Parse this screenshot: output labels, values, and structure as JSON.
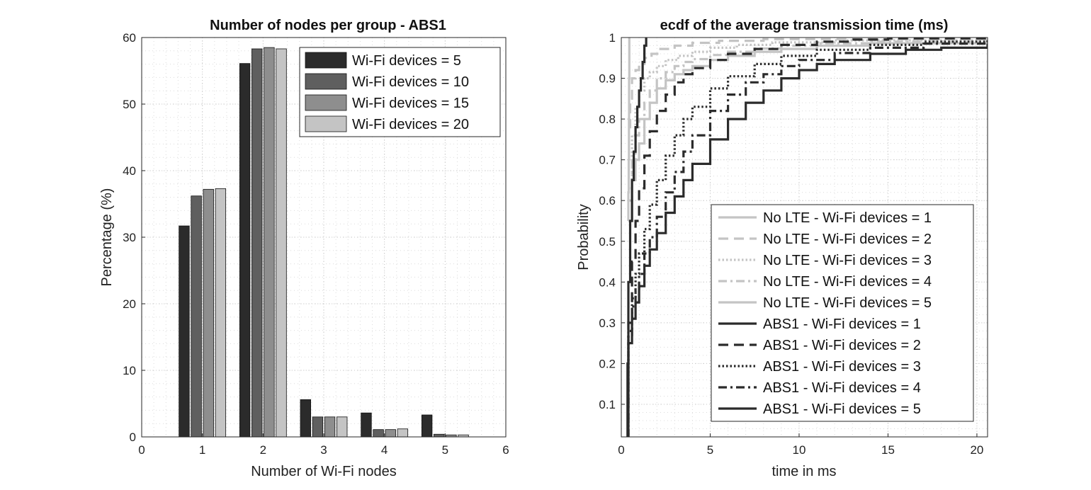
{
  "chart_data": [
    {
      "type": "bar",
      "title": "Number of nodes per group - ABS1",
      "xlabel": "Number of Wi-Fi nodes",
      "ylabel": "Percentage (%)",
      "xlim": [
        0,
        6
      ],
      "ylim": [
        0,
        60
      ],
      "xticks": [
        "0",
        "1",
        "2",
        "3",
        "4",
        "5",
        "6"
      ],
      "yticks": [
        "0",
        "10",
        "20",
        "30",
        "40",
        "50",
        "60"
      ],
      "categories": [
        1,
        2,
        3,
        4,
        5
      ],
      "grid": true,
      "minor_grid": true,
      "legend_position": "top-right",
      "series": [
        {
          "name": "Wi-Fi devices = 5",
          "color": "#2b2b2b",
          "values": [
            31.7,
            56.1,
            5.6,
            3.6,
            3.3
          ]
        },
        {
          "name": "Wi-Fi devices = 10",
          "color": "#5f5f5f",
          "values": [
            36.2,
            58.3,
            3.0,
            1.1,
            0.4
          ]
        },
        {
          "name": "Wi-Fi devices = 15",
          "color": "#8e8e8e",
          "values": [
            37.2,
            58.5,
            3.0,
            1.1,
            0.3
          ]
        },
        {
          "name": "Wi-Fi devices = 20",
          "color": "#c4c4c4",
          "values": [
            37.3,
            58.3,
            3.0,
            1.2,
            0.3
          ]
        }
      ]
    },
    {
      "type": "line",
      "title": "ecdf of the average transmission time (ms)",
      "xlabel": "time in ms",
      "ylabel": "Probability",
      "xlim": [
        0,
        20.6
      ],
      "ylim": [
        0.02,
        1
      ],
      "xticks": [
        "0",
        "5",
        "10",
        "15",
        "20"
      ],
      "yticks": [
        "0.1",
        "0.2",
        "0.3",
        "0.4",
        "0.5",
        "0.6",
        "0.7",
        "0.8",
        "0.9",
        "1"
      ],
      "grid": true,
      "minor_grid": true,
      "legend_position": "bottom-right",
      "series": [
        {
          "name": "No LTE - Wi-Fi devices = 1",
          "color": "#c4c4c4",
          "dash": "solid",
          "x": [
            0.4,
            0.4,
            0.42,
            0.43,
            0.44,
            0.45,
            0.45
          ],
          "y": [
            0.55,
            0.62,
            0.7,
            0.8,
            0.9,
            0.97,
            1.0
          ]
        },
        {
          "name": "No LTE - Wi-Fi devices = 2",
          "color": "#c4c4c4",
          "dash": "dashed",
          "x": [
            0.4,
            0.5,
            0.6,
            0.8,
            1.0,
            1.3,
            1.7,
            2.2,
            3.0,
            4.0,
            5.5,
            8.0,
            20.6
          ],
          "y": [
            0.78,
            0.85,
            0.9,
            0.92,
            0.935,
            0.95,
            0.96,
            0.972,
            0.98,
            0.987,
            0.992,
            0.996,
            1.0
          ]
        },
        {
          "name": "No LTE - Wi-Fi devices = 3",
          "color": "#c4c4c4",
          "dash": "dotted",
          "x": [
            0.4,
            0.6,
            0.8,
            1.0,
            1.3,
            1.6,
            2.0,
            2.5,
            3.2,
            4.0,
            5.0,
            6.5,
            8.5,
            12.0,
            20.6
          ],
          "y": [
            0.63,
            0.76,
            0.83,
            0.87,
            0.9,
            0.915,
            0.93,
            0.945,
            0.955,
            0.965,
            0.975,
            0.982,
            0.988,
            0.993,
            0.998
          ]
        },
        {
          "name": "No LTE - Wi-Fi devices = 4",
          "color": "#c4c4c4",
          "dash": "dashdot",
          "x": [
            0.4,
            0.6,
            0.8,
            1.0,
            1.3,
            1.6,
            2.0,
            2.5,
            3.0,
            3.5,
            4.0,
            5.0,
            6.0,
            7.5,
            9.0,
            11.0,
            14.0,
            20.6
          ],
          "y": [
            0.6,
            0.7,
            0.76,
            0.8,
            0.84,
            0.87,
            0.9,
            0.915,
            0.93,
            0.94,
            0.947,
            0.957,
            0.965,
            0.973,
            0.98,
            0.986,
            0.99,
            0.995
          ]
        },
        {
          "name": "No LTE - Wi-Fi devices = 5",
          "color": "#c4c4c4",
          "dash": "solid",
          "x": [
            0.4,
            0.6,
            0.8,
            1.0,
            1.3,
            1.6,
            2.0,
            2.5,
            3.0,
            3.5,
            4.0,
            5.0,
            6.0,
            7.5,
            9.0,
            11.0,
            14.0,
            20.6
          ],
          "y": [
            0.55,
            0.65,
            0.7,
            0.74,
            0.8,
            0.84,
            0.875,
            0.895,
            0.91,
            0.92,
            0.93,
            0.945,
            0.955,
            0.965,
            0.972,
            0.98,
            0.986,
            0.992
          ]
        },
        {
          "name": "ABS1 - Wi-Fi devices = 1",
          "color": "#2b2b2b",
          "dash": "solid",
          "x": [
            0.3,
            0.35,
            0.4,
            0.5,
            0.6,
            0.7,
            0.8,
            0.9,
            1.0,
            1.1,
            1.2,
            1.3,
            1.4
          ],
          "y": [
            0.02,
            0.2,
            0.4,
            0.55,
            0.65,
            0.72,
            0.78,
            0.83,
            0.87,
            0.9,
            0.94,
            0.98,
            1.0
          ]
        },
        {
          "name": "ABS1 - Wi-Fi devices = 2",
          "color": "#2b2b2b",
          "dash": "dashed",
          "x": [
            0.3,
            0.4,
            0.6,
            0.8,
            1.0,
            1.3,
            1.6,
            2.0,
            2.5,
            3.0,
            3.5,
            4.0,
            5.0,
            6.0,
            7.5,
            9.0,
            11.0,
            13.0,
            15.0,
            20.6
          ],
          "y": [
            0.02,
            0.3,
            0.45,
            0.55,
            0.63,
            0.71,
            0.77,
            0.82,
            0.86,
            0.89,
            0.91,
            0.925,
            0.945,
            0.96,
            0.972,
            0.982,
            0.99,
            0.995,
            0.998,
            1.0
          ]
        },
        {
          "name": "ABS1 - Wi-Fi devices = 3",
          "color": "#2b2b2b",
          "dash": "dotted",
          "x": [
            0.3,
            0.4,
            0.6,
            0.8,
            1.0,
            1.3,
            1.6,
            2.0,
            2.5,
            3.0,
            3.5,
            4.0,
            5.0,
            6.0,
            7.5,
            9.0,
            11.0,
            14.0,
            17.0,
            20.6
          ],
          "y": [
            0.02,
            0.28,
            0.36,
            0.42,
            0.47,
            0.53,
            0.59,
            0.65,
            0.71,
            0.76,
            0.8,
            0.83,
            0.875,
            0.905,
            0.935,
            0.955,
            0.97,
            0.982,
            0.99,
            0.995
          ]
        },
        {
          "name": "ABS1 - Wi-Fi devices = 4",
          "color": "#2b2b2b",
          "dash": "dashdot",
          "x": [
            0.3,
            0.4,
            0.6,
            0.8,
            1.0,
            1.3,
            1.6,
            2.0,
            2.5,
            3.0,
            3.5,
            4.0,
            5.0,
            6.0,
            7.0,
            8.0,
            9.0,
            10.0,
            12.0,
            14.0,
            17.0,
            20.6
          ],
          "y": [
            0.02,
            0.27,
            0.34,
            0.38,
            0.42,
            0.47,
            0.51,
            0.56,
            0.62,
            0.67,
            0.72,
            0.76,
            0.82,
            0.86,
            0.89,
            0.91,
            0.93,
            0.945,
            0.962,
            0.975,
            0.985,
            0.992
          ]
        },
        {
          "name": "ABS1 - Wi-Fi devices = 5",
          "color": "#2b2b2b",
          "dash": "solid",
          "x": [
            0.3,
            0.4,
            0.6,
            0.8,
            1.0,
            1.3,
            1.6,
            2.0,
            2.5,
            3.0,
            3.5,
            4.0,
            5.0,
            6.0,
            7.0,
            8.0,
            9.0,
            10.0,
            11.0,
            12.0,
            14.0,
            16.0,
            18.0,
            20.6
          ],
          "y": [
            0.02,
            0.25,
            0.31,
            0.35,
            0.39,
            0.44,
            0.48,
            0.52,
            0.57,
            0.61,
            0.65,
            0.69,
            0.75,
            0.8,
            0.84,
            0.87,
            0.9,
            0.92,
            0.935,
            0.945,
            0.96,
            0.97,
            0.975,
            0.985
          ]
        }
      ]
    }
  ]
}
